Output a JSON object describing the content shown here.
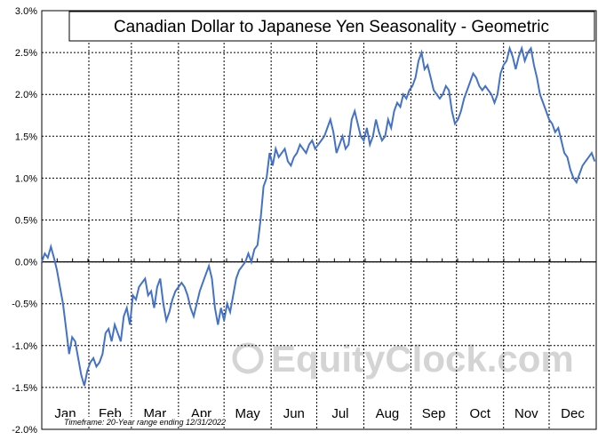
{
  "chart_data": {
    "type": "line",
    "title": "Canadian Dollar to Japanese Yen Seasonality - Geometric",
    "footnote": "Timeframe: 20-Year range ending 12/31/2022",
    "watermark": "EquityClock.com",
    "xlabel": "",
    "ylabel": "",
    "months": [
      "Jan",
      "Feb",
      "Mar",
      "Apr",
      "May",
      "Jun",
      "Jul",
      "Aug",
      "Sep",
      "Oct",
      "Nov",
      "Dec"
    ],
    "ylim": [
      -2.0,
      3.0
    ],
    "yticks": [
      -2.0,
      -1.5,
      -1.0,
      -0.5,
      0.0,
      0.5,
      1.0,
      1.5,
      2.0,
      2.5,
      3.0
    ],
    "ytick_labels": [
      "-2.0%",
      "-1.5%",
      "-1.0%",
      "-0.5%",
      "0.0%",
      "0.5%",
      "1.0%",
      "1.5%",
      "2.0%",
      "2.5%",
      "3.0%"
    ],
    "grid": true,
    "legend": "none",
    "series": [
      {
        "color": "#4472c4",
        "x_unit": "day of year (0-365)",
        "points": [
          [
            0,
            0.0
          ],
          [
            2,
            0.1
          ],
          [
            4,
            0.05
          ],
          [
            6,
            0.18
          ],
          [
            8,
            0.05
          ],
          [
            10,
            -0.1
          ],
          [
            12,
            -0.3
          ],
          [
            14,
            -0.5
          ],
          [
            16,
            -0.8
          ],
          [
            18,
            -1.1
          ],
          [
            20,
            -0.9
          ],
          [
            22,
            -0.95
          ],
          [
            24,
            -1.15
          ],
          [
            26,
            -1.35
          ],
          [
            28,
            -1.48
          ],
          [
            30,
            -1.3
          ],
          [
            32,
            -1.2
          ],
          [
            34,
            -1.15
          ],
          [
            36,
            -1.25
          ],
          [
            38,
            -1.2
          ],
          [
            40,
            -1.1
          ],
          [
            42,
            -0.85
          ],
          [
            44,
            -0.8
          ],
          [
            46,
            -0.95
          ],
          [
            48,
            -0.75
          ],
          [
            50,
            -0.85
          ],
          [
            52,
            -0.95
          ],
          [
            54,
            -0.65
          ],
          [
            56,
            -0.55
          ],
          [
            58,
            -0.75
          ],
          [
            60,
            -0.4
          ],
          [
            62,
            -0.45
          ],
          [
            64,
            -0.3
          ],
          [
            66,
            -0.25
          ],
          [
            68,
            -0.2
          ],
          [
            70,
            -0.4
          ],
          [
            72,
            -0.35
          ],
          [
            74,
            -0.55
          ],
          [
            76,
            -0.3
          ],
          [
            78,
            -0.2
          ],
          [
            80,
            -0.5
          ],
          [
            82,
            -0.7
          ],
          [
            84,
            -0.6
          ],
          [
            86,
            -0.45
          ],
          [
            88,
            -0.35
          ],
          [
            90,
            -0.3
          ],
          [
            92,
            -0.25
          ],
          [
            94,
            -0.3
          ],
          [
            96,
            -0.4
          ],
          [
            98,
            -0.55
          ],
          [
            100,
            -0.65
          ],
          [
            102,
            -0.5
          ],
          [
            104,
            -0.35
          ],
          [
            106,
            -0.25
          ],
          [
            108,
            -0.15
          ],
          [
            110,
            -0.05
          ],
          [
            112,
            -0.2
          ],
          [
            114,
            -0.55
          ],
          [
            116,
            -0.75
          ],
          [
            118,
            -0.55
          ],
          [
            120,
            -0.7
          ],
          [
            122,
            -0.5
          ],
          [
            124,
            -0.6
          ],
          [
            126,
            -0.4
          ],
          [
            128,
            -0.2
          ],
          [
            130,
            -0.1
          ],
          [
            132,
            -0.05
          ],
          [
            134,
            0.0
          ],
          [
            136,
            0.1
          ],
          [
            138,
            0.0
          ],
          [
            140,
            0.15
          ],
          [
            142,
            0.2
          ],
          [
            144,
            0.5
          ],
          [
            146,
            0.9
          ],
          [
            148,
            1.0
          ],
          [
            150,
            1.3
          ],
          [
            152,
            1.15
          ],
          [
            154,
            1.35
          ],
          [
            156,
            1.25
          ],
          [
            158,
            1.3
          ],
          [
            160,
            1.35
          ],
          [
            162,
            1.2
          ],
          [
            164,
            1.15
          ],
          [
            166,
            1.25
          ],
          [
            168,
            1.3
          ],
          [
            170,
            1.4
          ],
          [
            172,
            1.35
          ],
          [
            174,
            1.3
          ],
          [
            176,
            1.4
          ],
          [
            178,
            1.45
          ],
          [
            180,
            1.35
          ],
          [
            182,
            1.4
          ],
          [
            184,
            1.45
          ],
          [
            186,
            1.5
          ],
          [
            188,
            1.6
          ],
          [
            190,
            1.7
          ],
          [
            192,
            1.55
          ],
          [
            194,
            1.3
          ],
          [
            196,
            1.4
          ],
          [
            198,
            1.5
          ],
          [
            200,
            1.35
          ],
          [
            202,
            1.4
          ],
          [
            204,
            1.7
          ],
          [
            206,
            1.8
          ],
          [
            208,
            1.65
          ],
          [
            210,
            1.5
          ],
          [
            212,
            1.45
          ],
          [
            214,
            1.6
          ],
          [
            216,
            1.4
          ],
          [
            218,
            1.5
          ],
          [
            220,
            1.7
          ],
          [
            222,
            1.55
          ],
          [
            224,
            1.45
          ],
          [
            226,
            1.5
          ],
          [
            228,
            1.7
          ],
          [
            230,
            1.6
          ],
          [
            232,
            1.8
          ],
          [
            234,
            1.9
          ],
          [
            236,
            1.85
          ],
          [
            238,
            2.0
          ],
          [
            240,
            1.95
          ],
          [
            242,
            2.05
          ],
          [
            244,
            2.1
          ],
          [
            246,
            2.2
          ],
          [
            248,
            2.4
          ],
          [
            250,
            2.5
          ],
          [
            252,
            2.3
          ],
          [
            254,
            2.35
          ],
          [
            256,
            2.2
          ],
          [
            258,
            2.05
          ],
          [
            260,
            2.0
          ],
          [
            262,
            1.95
          ],
          [
            264,
            2.0
          ],
          [
            266,
            2.1
          ],
          [
            268,
            2.05
          ],
          [
            270,
            1.8
          ],
          [
            272,
            1.65
          ],
          [
            274,
            1.7
          ],
          [
            276,
            1.8
          ],
          [
            278,
            1.95
          ],
          [
            280,
            2.05
          ],
          [
            282,
            2.15
          ],
          [
            284,
            2.25
          ],
          [
            286,
            2.2
          ],
          [
            288,
            2.1
          ],
          [
            290,
            2.05
          ],
          [
            292,
            2.1
          ],
          [
            294,
            2.05
          ],
          [
            296,
            2.0
          ],
          [
            298,
            1.9
          ],
          [
            300,
            2.0
          ],
          [
            302,
            2.25
          ],
          [
            304,
            2.35
          ],
          [
            306,
            2.4
          ],
          [
            308,
            2.55
          ],
          [
            310,
            2.45
          ],
          [
            312,
            2.3
          ],
          [
            314,
            2.45
          ],
          [
            316,
            2.55
          ],
          [
            318,
            2.4
          ],
          [
            320,
            2.5
          ],
          [
            322,
            2.55
          ],
          [
            324,
            2.35
          ],
          [
            326,
            2.2
          ],
          [
            328,
            2.0
          ],
          [
            330,
            1.9
          ],
          [
            332,
            1.8
          ],
          [
            334,
            1.7
          ],
          [
            336,
            1.65
          ],
          [
            338,
            1.55
          ],
          [
            340,
            1.6
          ],
          [
            342,
            1.45
          ],
          [
            344,
            1.3
          ],
          [
            346,
            1.25
          ],
          [
            348,
            1.1
          ],
          [
            350,
            1.0
          ],
          [
            352,
            0.95
          ],
          [
            354,
            1.05
          ],
          [
            356,
            1.15
          ],
          [
            358,
            1.2
          ],
          [
            360,
            1.25
          ],
          [
            362,
            1.3
          ],
          [
            364,
            1.2
          ]
        ]
      }
    ]
  }
}
